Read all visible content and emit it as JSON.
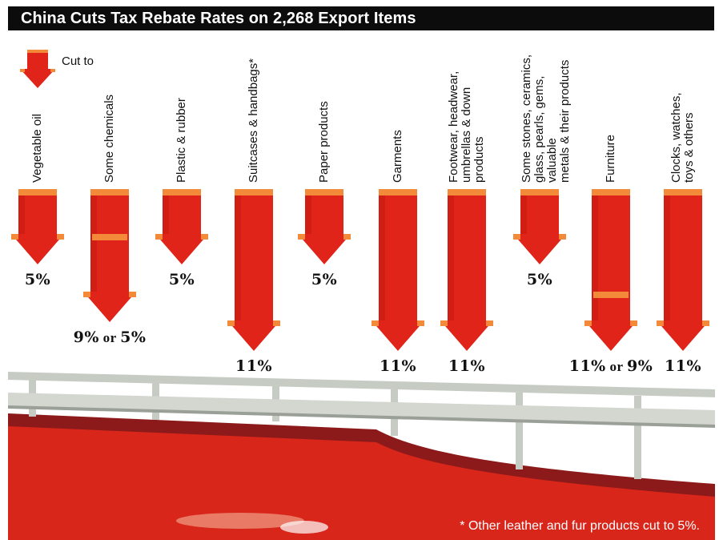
{
  "chart_data": {
    "type": "bar",
    "title": "China Cuts Tax Rebate Rates on 2,268 Export Items",
    "legend": "Cut to",
    "footnote": "* Other leather and fur products cut to 5%.",
    "categories": [
      "Vegetable oil",
      "Some chemicals",
      "Plastic & rubber",
      "Suitcases & handbags*",
      "Paper products",
      "Garments",
      "Footwear, headwear, umbrellas & down products",
      "Some stones, ceramics, glass, pearls, gems, valuable metals & their products",
      "Furniture",
      "Clocks, watches, toys & others"
    ],
    "category_lines": [
      [
        "Vegetable oil"
      ],
      [
        "Some chemicals"
      ],
      [
        "Plastic & rubber"
      ],
      [
        "Suitcases & handbags*"
      ],
      [
        "Paper products"
      ],
      [
        "Garments"
      ],
      [
        "Footwear, headwear,",
        "umbrellas & down",
        "products"
      ],
      [
        "Some stones, ceramics,",
        "glass, pearls, gems, valuable",
        "metals & their products"
      ],
      [
        "Furniture"
      ],
      [
        "Clocks, watches,",
        "toys & others"
      ]
    ],
    "values": [
      5,
      9,
      5,
      11,
      5,
      11,
      11,
      5,
      11,
      11
    ],
    "alt_values": [
      null,
      5,
      null,
      null,
      null,
      null,
      null,
      null,
      9,
      null
    ],
    "rate_labels": [
      "5%",
      "9%",
      "5%",
      "11%",
      "5%",
      "11%",
      "11%",
      "5%",
      "11%",
      "11%"
    ],
    "alt_rate_labels": [
      "",
      "5%",
      "",
      "",
      "",
      "",
      "",
      "",
      "9%",
      ""
    ],
    "or_word": "or",
    "ylim": [
      0,
      11
    ]
  },
  "colors": {
    "arrow": "#e02419",
    "arrow_dark": "#b3140e",
    "arrow_cap": "#f28a3a",
    "title_bg": "#0c0c0c",
    "title_text": "#ffffff",
    "water": "#d9261b",
    "water_dark": "#8c1a1a",
    "rail": "#c6cbc4"
  }
}
